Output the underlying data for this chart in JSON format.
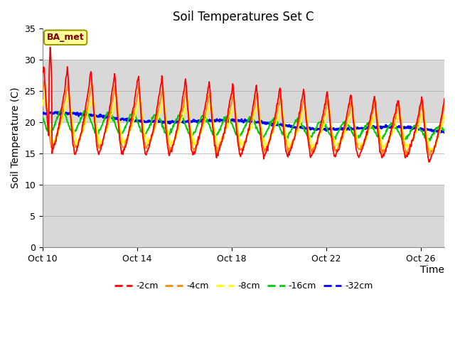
{
  "title": "Soil Temperatures Set C",
  "xlabel": "Time",
  "ylabel": "Soil Temperature (C)",
  "ylim": [
    0,
    35
  ],
  "annotation": "BA_met",
  "legend": [
    "-2cm",
    "-4cm",
    "-8cm",
    "-16cm",
    "-32cm"
  ],
  "line_colors": [
    "#ff0000",
    "#ff8800",
    "#ffff00",
    "#00cc00",
    "#0000ff"
  ],
  "line_widths": [
    1.3,
    1.3,
    1.3,
    1.5,
    2.0
  ],
  "xtick_labels": [
    "Oct 10",
    "Oct 14",
    "Oct 18",
    "Oct 22",
    "Oct 26"
  ],
  "xtick_positions": [
    0,
    4,
    8,
    12,
    16
  ],
  "background_color": "#d8d8d8",
  "white_band_color": "#ffffff",
  "gray_band_color": "#d8d8d8",
  "title_fontsize": 12,
  "tick_fontsize": 9,
  "label_fontsize": 10
}
